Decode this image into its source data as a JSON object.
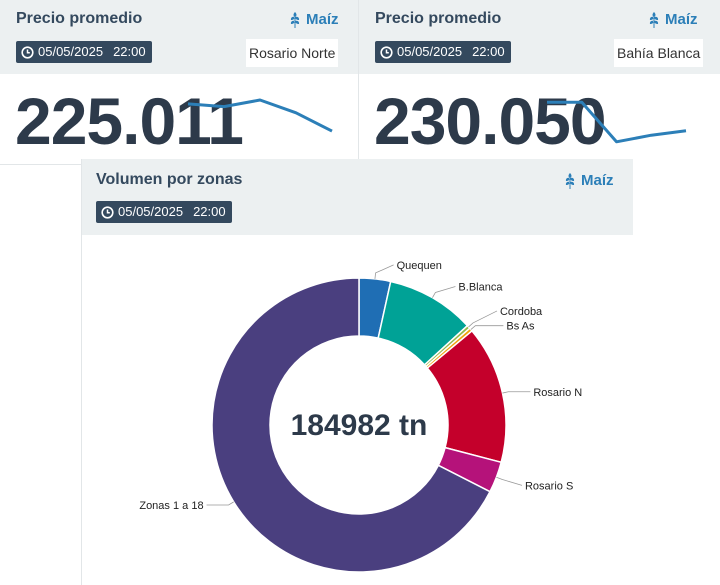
{
  "cards": [
    {
      "title": "Precio promedio",
      "commodity": "Maíz",
      "date": "05/05/2025",
      "time": "22:00",
      "location": "Rosario Norte",
      "value": "225.011",
      "sparkline": [
        0.85,
        0.78,
        0.95,
        0.62,
        0.15
      ],
      "sparkline_color": "#2c7fb8"
    },
    {
      "title": "Precio promedio",
      "commodity": "Maíz",
      "date": "05/05/2025",
      "time": "22:00",
      "location": "Bahía Blanca",
      "value": "230.050",
      "sparkline": [
        0.95,
        0.95,
        0.05,
        0.2,
        0.3
      ],
      "sparkline_color": "#2c7fb8"
    }
  ],
  "volume_card": {
    "title": "Volumen por zonas",
    "commodity": "Maíz",
    "date": "05/05/2025",
    "time": "22:00",
    "center_label": "184982 tn"
  },
  "chart_data": {
    "type": "pie",
    "donut": true,
    "categories": [
      "Quequen",
      "B.Blanca",
      "Cordoba",
      "Bs As",
      "Rosario N",
      "Rosario S",
      "Zonas 1 a 18"
    ],
    "values": [
      6400,
      18000,
      700,
      700,
      28000,
      6300,
      124882
    ],
    "colors": [
      "#1f6eb4",
      "#00a296",
      "#93b84a",
      "#f0a30a",
      "#c4002b",
      "#b5127a",
      "#4a3f7f"
    ],
    "total_label": "184982 tn"
  },
  "colors": {
    "accent": "#2c7fb8",
    "header_bg": "#ecf0f1",
    "badge_bg": "#34495e"
  },
  "icons": {
    "commodity": "wheat-icon",
    "date": "clock-icon"
  }
}
